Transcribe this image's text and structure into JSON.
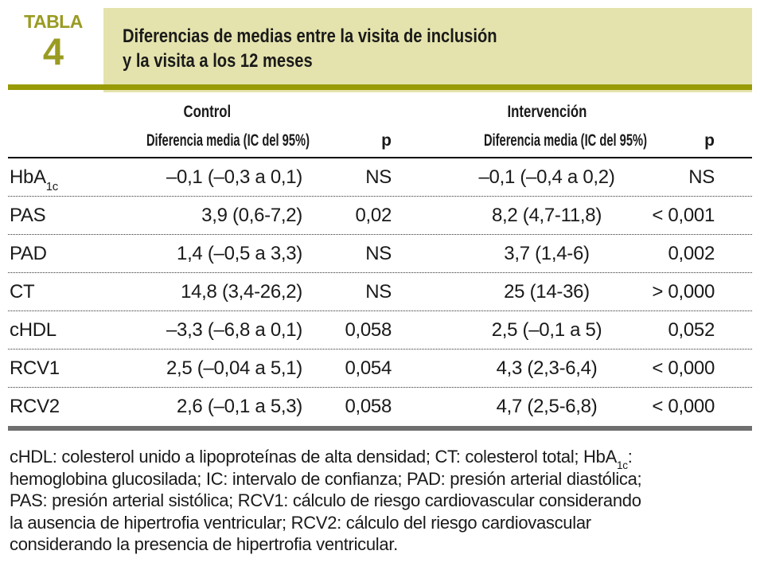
{
  "badge": {
    "label": "TABLA",
    "number": "4",
    "color": "#9a9b22"
  },
  "header": {
    "title_line1": "Diferencias de medias entre la visita de inclusión",
    "title_line2": "y la visita a los 12 meses",
    "box_color": "#e4e3ad",
    "accent_color": "#989b05"
  },
  "table": {
    "group_headers": {
      "control": "Control",
      "intervention": "Intervención"
    },
    "col_headers": {
      "diff": "Diferencia media (IC del 95%)",
      "p": "p"
    },
    "rows": [
      {
        "label": "HbA",
        "label_sub": "1c",
        "c_diff": "–0,1 (–0,3 a 0,1)",
        "c_p": "NS",
        "i_diff": "–0,1 (–0,4 a 0,2)",
        "i_p": "NS"
      },
      {
        "label": "PAS",
        "c_diff": "3,9 (0,6-7,2)",
        "c_p": "0,02",
        "i_diff": "8,2 (4,7-11,8)",
        "i_p": "< 0,001"
      },
      {
        "label": "PAD",
        "c_diff": "1,4 (–0,5 a 3,3)",
        "c_p": "NS",
        "i_diff": "3,7 (1,4-6)",
        "i_p": "0,002"
      },
      {
        "label": "CT",
        "c_diff": "14,8 (3,4-26,2)",
        "c_p": "NS",
        "i_diff": "25 (14-36)",
        "i_p": "> 0,000"
      },
      {
        "label": "cHDL",
        "c_diff": "–3,3 (–6,8 a 0,1)",
        "c_p": "0,058",
        "i_diff": "2,5 (–0,1 a 5)",
        "i_p": "0,052"
      },
      {
        "label": "RCV1",
        "c_diff": "2,5 (–0,04 a 5,1)",
        "c_p": "0,054",
        "i_diff": "4,3 (2,3-6,4)",
        "i_p": "< 0,000"
      },
      {
        "label": "RCV2",
        "c_diff": "2,6 (–0,1 a 5,3)",
        "c_p": "0,058",
        "i_diff": "4,7 (2,5-6,8)",
        "i_p": "< 0,000"
      }
    ],
    "bottom_bar_color": "#6f6f6f"
  },
  "footnote": {
    "line1_pre": "cHDL: colesterol unido a lipoproteínas de alta densidad; CT: colesterol total; HbA",
    "line1_sub": "1c",
    "line1_post": ":",
    "line2": "hemoglobina glucosilada; IC: intervalo de confianza; PAD: presión arterial diastólica;",
    "line3": "PAS: presión arterial sistólica; RCV1: cálculo de riesgo cardiovascular considerando",
    "line4": "la ausencia de hipertrofia ventricular; RCV2: cálculo del riesgo cardiovascular",
    "line5": "considerando la presencia de hipertrofia ventricular."
  }
}
